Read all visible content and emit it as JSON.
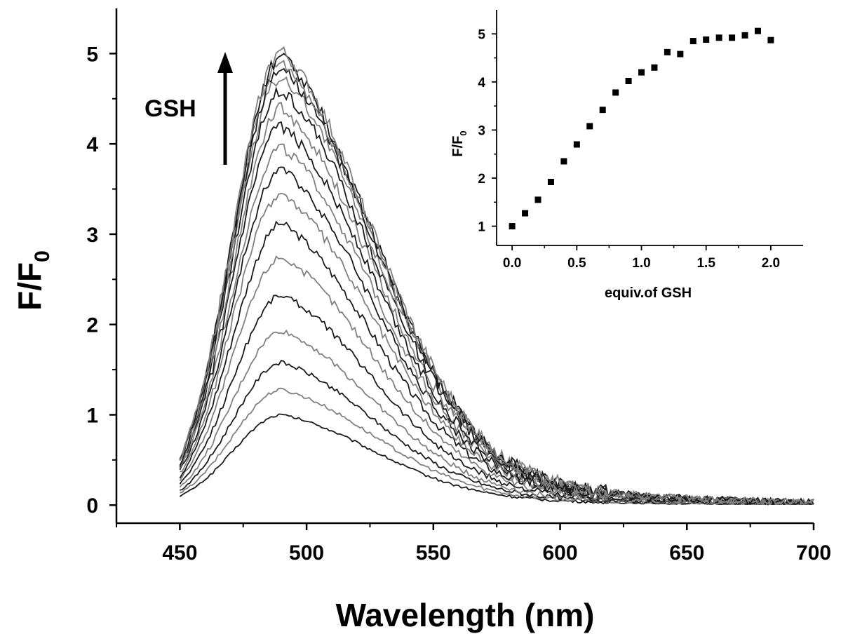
{
  "chart_data": [
    {
      "id": "main",
      "type": "line",
      "title": "",
      "xlabel": "Wavelength (nm)",
      "ylabel": {
        "main": "F/F",
        "sub": "0"
      },
      "xlim": [
        425,
        700
      ],
      "ylim": [
        -0.2,
        5.5
      ],
      "xticks": [
        450,
        500,
        550,
        600,
        650,
        700
      ],
      "yticks": [
        0,
        1,
        2,
        3,
        4,
        5
      ],
      "grid": false,
      "legend": "none",
      "annotation": {
        "text": "GSH",
        "arrow": "up"
      },
      "line_colors": [
        "#1a1a1a",
        "#808080"
      ],
      "x_range": [
        450,
        700
      ],
      "peak_wavelength": 490,
      "series": [
        {
          "peak": 1.0
        },
        {
          "peak": 1.28
        },
        {
          "peak": 1.58
        },
        {
          "peak": 1.93
        },
        {
          "peak": 2.33
        },
        {
          "peak": 2.75
        },
        {
          "peak": 3.12
        },
        {
          "peak": 3.45
        },
        {
          "peak": 3.73
        },
        {
          "peak": 3.97
        },
        {
          "peak": 4.2
        },
        {
          "peak": 4.4
        },
        {
          "peak": 4.6
        },
        {
          "peak": 4.75
        },
        {
          "peak": 4.85
        },
        {
          "peak": 4.92
        },
        {
          "peak": 4.98
        },
        {
          "peak": 5.03
        }
      ]
    },
    {
      "id": "inset",
      "type": "scatter",
      "title": "",
      "xlabel": "equiv.of GSH",
      "ylabel": {
        "main": "F/F",
        "sub": "0"
      },
      "xlim": [
        -0.12,
        2.25
      ],
      "ylim": [
        0.6,
        5.5
      ],
      "xticks": [
        0.0,
        0.5,
        1.0,
        1.5,
        2.0
      ],
      "xtick_labels": [
        "0.0",
        "0.5",
        "1.0",
        "1.5",
        "2.0"
      ],
      "yticks": [
        1,
        2,
        3,
        4,
        5
      ],
      "grid": false,
      "legend": "none",
      "marker": "square",
      "x": [
        0.0,
        0.1,
        0.2,
        0.3,
        0.4,
        0.5,
        0.6,
        0.7,
        0.8,
        0.9,
        1.0,
        1.1,
        1.2,
        1.3,
        1.4,
        1.5,
        1.6,
        1.7,
        1.8,
        1.9,
        2.0
      ],
      "y": [
        1.0,
        1.27,
        1.55,
        1.92,
        2.35,
        2.7,
        3.08,
        3.42,
        3.78,
        4.02,
        4.2,
        4.3,
        4.62,
        4.58,
        4.85,
        4.88,
        4.92,
        4.92,
        4.97,
        5.06,
        4.87
      ]
    }
  ]
}
